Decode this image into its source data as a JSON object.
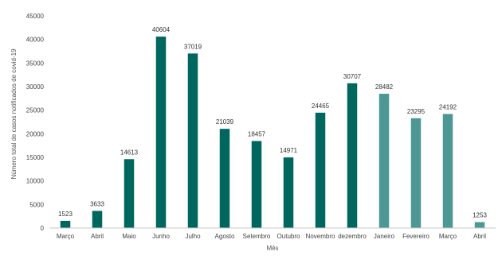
{
  "chart_data": {
    "type": "bar",
    "title": "",
    "xlabel": "Mês",
    "ylabel": "Número total de casos notificados de covid-19",
    "ylim": [
      0,
      45000
    ],
    "yticks": [
      0,
      5000,
      10000,
      15000,
      20000,
      25000,
      30000,
      35000,
      40000,
      45000
    ],
    "grid": false,
    "legend": "none",
    "categories": [
      "Março",
      "Abril",
      "Maio",
      "Junho",
      "Julho",
      "Agosto",
      "Setembro",
      "Outubro",
      "Novembro",
      "dezembro",
      "Janeiro",
      "Fevereiro",
      "Março",
      "Abril"
    ],
    "values": [
      1523,
      3633,
      14613,
      40604,
      37019,
      21039,
      18457,
      14971,
      24465,
      30707,
      28482,
      23295,
      24192,
      1253
    ],
    "data_labels": [
      "1523",
      "3633",
      "14613",
      "40604",
      "37019",
      "21039",
      "18457",
      "14971",
      "24465",
      "30707",
      "28482",
      "23295",
      "24192",
      "1253"
    ],
    "bar_colors": [
      "#00675f",
      "#00675f",
      "#00675f",
      "#00675f",
      "#00675f",
      "#00675f",
      "#00675f",
      "#00675f",
      "#00675f",
      "#00675f",
      "#4d9894",
      "#4d9894",
      "#4d9894",
      "#4d9894"
    ],
    "axis_color": "#c8c8c8"
  }
}
